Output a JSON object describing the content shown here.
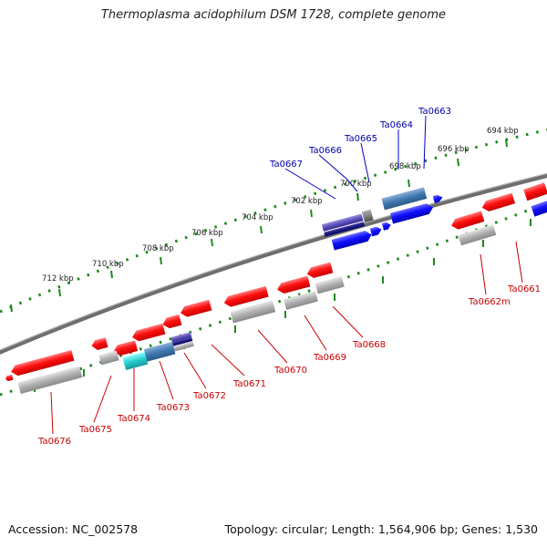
{
  "title": "Thermoplasma acidophilum DSM 1728, complete genome",
  "footer": {
    "accession": "Accession: NC_002578",
    "summary": "Topology: circular; Length: 1,564,906 bp; Genes: 1,530"
  },
  "scale_labels": [
    "694 kbp",
    "696 kbp",
    "698 kbp",
    "700 kbp",
    "702 kbp",
    "704 kbp",
    "706 kbp",
    "708 kbp",
    "710 kbp",
    "712 kbp"
  ],
  "gene_labels": {
    "forward": [
      "Ta0663",
      "Ta0664",
      "Ta0665",
      "Ta0666",
      "Ta0667"
    ],
    "reverse": [
      "Ta0661",
      "Ta0662m",
      "Ta0668",
      "Ta0669",
      "Ta0670",
      "Ta0671",
      "Ta0672",
      "Ta0673",
      "Ta0674",
      "Ta0675",
      "Ta0676"
    ]
  },
  "colors": {
    "forward_label": "#0000aa",
    "reverse_label": "#cc0000",
    "forward_gene": "#1a1aff",
    "reverse_gene": "#ff1a1a",
    "pseudo_gene": "#9a9a9a",
    "backbone": "#7a7a7a",
    "scale_dots": "#1a8a1a"
  }
}
